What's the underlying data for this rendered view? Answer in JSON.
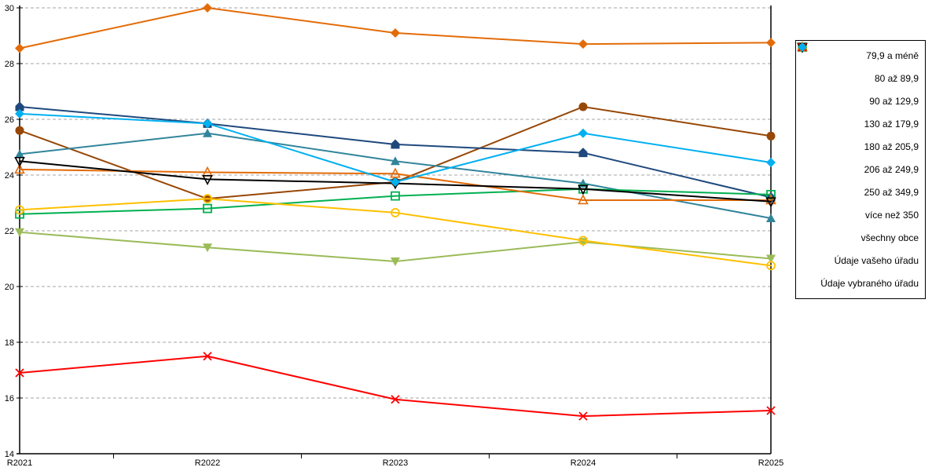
{
  "chart_data": {
    "type": "line",
    "categories": [
      "R2021",
      "R2022",
      "R2023",
      "R2024",
      "R2025"
    ],
    "ylim": [
      14,
      30
    ],
    "ytick_step": 2,
    "grid": "horizontal-dashed",
    "grid_color": "#A6A6A6",
    "axis_color": "#000000",
    "legend_position": "right",
    "series": [
      {
        "name": "79,9 a méně",
        "color": "#E36C09",
        "marker": "diamond-filled",
        "values": [
          28.55,
          30.0,
          29.1,
          28.7,
          28.75
        ]
      },
      {
        "name": "80 až 89,9",
        "color": "#974706",
        "marker": "circle-filled",
        "values": [
          25.6,
          23.15,
          23.75,
          26.45,
          25.4
        ]
      },
      {
        "name": "90 až 129,9",
        "color": "#31859B",
        "marker": "triangle-up-filled",
        "values": [
          24.75,
          25.5,
          24.5,
          23.7,
          22.45
        ]
      },
      {
        "name": "130 až 179,9",
        "color": "#1F497D",
        "marker": "pentagon-filled",
        "values": [
          26.45,
          25.85,
          25.1,
          24.8,
          23.2
        ]
      },
      {
        "name": "180 až 205,9",
        "color": "#9BBB59",
        "marker": "triangle-down-filled",
        "values": [
          21.95,
          21.4,
          20.9,
          21.6,
          21.0
        ]
      },
      {
        "name": "206 až 249,9",
        "color": "#00B050",
        "marker": "square-open",
        "values": [
          22.6,
          22.8,
          23.25,
          23.5,
          23.3
        ]
      },
      {
        "name": "250 až 349,9",
        "color": "#FFC000",
        "marker": "circle-open",
        "values": [
          22.75,
          23.15,
          22.65,
          21.65,
          20.75
        ]
      },
      {
        "name": "více než 350",
        "color": "#E36C09",
        "marker": "triangle-up-open",
        "values": [
          24.2,
          24.1,
          24.05,
          23.1,
          23.1
        ]
      },
      {
        "name": "všechny obce",
        "color": "#000000",
        "marker": "triangle-down-open",
        "values": [
          24.5,
          23.85,
          23.7,
          23.5,
          23.05
        ]
      },
      {
        "name": "Údaje vašeho úřadu",
        "color": "#FF0000",
        "marker": "x",
        "values": [
          16.9,
          17.5,
          15.95,
          15.35,
          15.55
        ]
      },
      {
        "name": "Údaje vybraného úřadu",
        "color": "#00B0F0",
        "marker": "diamond-filled",
        "values": [
          26.2,
          25.85,
          23.75,
          25.5,
          24.45
        ]
      }
    ]
  }
}
